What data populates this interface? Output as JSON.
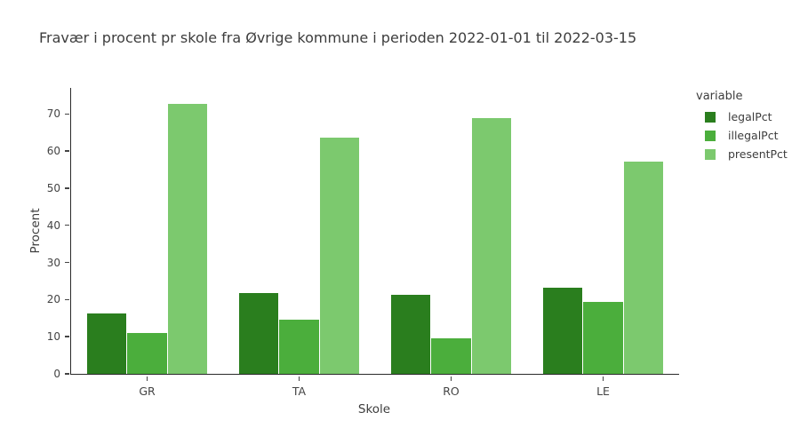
{
  "colors": {
    "background": "#ffffff",
    "axis_line": "#2a2a2a",
    "tick_text": "#444444",
    "title_text": "#3d3d3d"
  },
  "chart_data": {
    "type": "bar",
    "title": "Fravær i procent pr skole fra Øvrige kommune i perioden 2022-01-01 til 2022-03-15",
    "xlabel": "Skole",
    "ylabel": "Procent",
    "categories": [
      "GR",
      "TA",
      "RO",
      "LE"
    ],
    "series": [
      {
        "name": "legalPct",
        "color": "#2a7e1e",
        "values": [
          16.2,
          21.7,
          21.2,
          23.2
        ]
      },
      {
        "name": "illegalPct",
        "color": "#4bae3c",
        "values": [
          10.9,
          14.5,
          9.6,
          19.4
        ]
      },
      {
        "name": "presentPct",
        "color": "#7cc96e",
        "values": [
          72.7,
          63.6,
          68.9,
          57.2
        ]
      }
    ],
    "ylim": [
      0,
      77
    ],
    "yticks": [
      0,
      10,
      20,
      30,
      40,
      50,
      60,
      70
    ],
    "grid": false,
    "legend_position": "right",
    "legend_title": "variable",
    "bar_group_fraction": 0.8
  }
}
